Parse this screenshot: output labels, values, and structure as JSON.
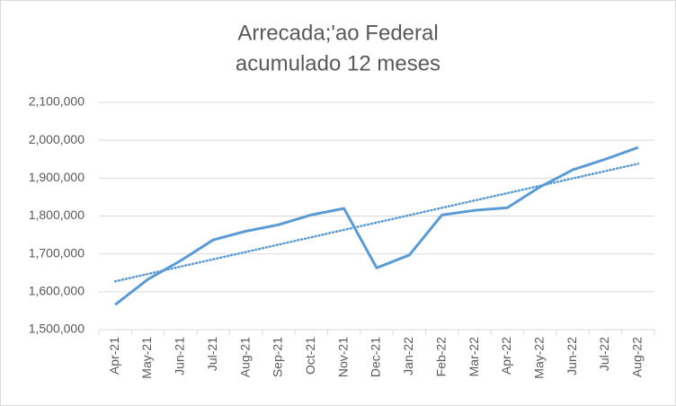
{
  "chart_data": {
    "type": "line",
    "title": [
      "Arrecada;'ao Federal",
      "acumulado  12 meses"
    ],
    "categories": [
      "Apr-21",
      "May-21",
      "Jun-21",
      "Jul-21",
      "Aug-21",
      "Sep-21",
      "Oct-21",
      "Nov-21",
      "Dec-21",
      "Jan-22",
      "Feb-22",
      "Mar-22",
      "Apr-22",
      "May-22",
      "Jun-22",
      "Jul-22",
      "Aug-22"
    ],
    "values": [
      1566000,
      1633000,
      1682000,
      1737000,
      1760000,
      1777000,
      1803000,
      1820000,
      1663000,
      1697000,
      1803000,
      1815000,
      1822000,
      1877000,
      1922000,
      1950000,
      1981000
    ],
    "color": "#5b9bd5",
    "trendline": "linear",
    "ylim": [
      1500000,
      2100000
    ],
    "yticks": [
      {
        "value": 1500000,
        "label": "1,500,000"
      },
      {
        "value": 1600000,
        "label": "1,600,000"
      },
      {
        "value": 1700000,
        "label": "1,700,000"
      },
      {
        "value": 1800000,
        "label": "1,800,000"
      },
      {
        "value": 1900000,
        "label": "1,900,000"
      },
      {
        "value": 2000000,
        "label": "2,000,000"
      },
      {
        "value": 2100000,
        "label": "2,100,000"
      }
    ],
    "grid": true
  }
}
